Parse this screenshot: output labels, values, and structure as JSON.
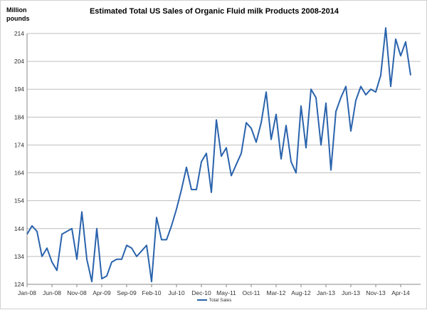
{
  "chart_data": {
    "type": "line",
    "title": "Estimated Total US Sales of Organic Fluid milk Products 2008-2014",
    "ylabel": "Million pounds",
    "xlabel": "",
    "ylim": [
      124,
      214
    ],
    "yticks": [
      124,
      134,
      144,
      154,
      164,
      174,
      184,
      194,
      204,
      214
    ],
    "xtick_labels": [
      "Jan-08",
      "Jun-08",
      "Nov-08",
      "Apr-09",
      "Sep-09",
      "Feb-10",
      "Jul-10",
      "Dec-10",
      "May-11",
      "Oct-11",
      "Mar-12",
      "Aug-12",
      "Jan-13",
      "Jun-13",
      "Nov-13",
      "Apr-14"
    ],
    "x_start": "Jan-08",
    "x_interval": "monthly",
    "grid": true,
    "legend": "bottom",
    "colors": {
      "series": "#2a63ac",
      "grid": "#bfbfbf"
    },
    "series": [
      {
        "name": "Total Sales",
        "values": [
          142,
          145,
          143,
          134,
          137,
          132,
          129,
          142,
          143,
          144,
          133,
          150,
          133,
          125,
          144,
          126,
          127,
          132,
          133,
          133,
          138,
          137,
          134,
          136,
          138,
          125,
          148,
          140,
          140,
          145,
          151,
          158,
          166,
          158,
          158,
          168,
          171,
          157,
          183,
          170,
          173,
          163,
          167,
          171,
          182,
          180,
          175,
          182,
          193,
          176,
          185,
          169,
          181,
          168,
          164,
          188,
          173,
          194,
          191,
          174,
          189,
          165,
          186,
          191,
          195,
          179,
          190,
          195,
          192,
          194,
          193,
          199,
          216,
          195,
          212,
          206,
          211,
          199
        ]
      }
    ]
  }
}
